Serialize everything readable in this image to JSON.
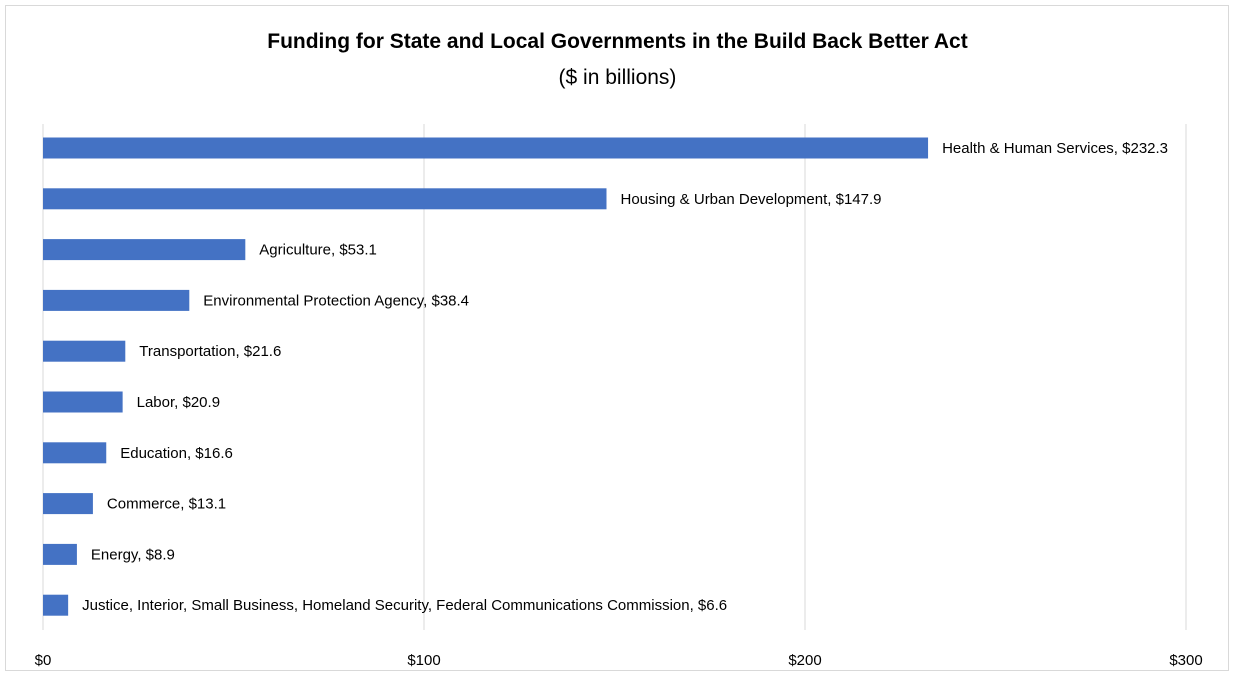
{
  "chart_data": {
    "type": "bar",
    "orientation": "horizontal",
    "title": "Funding for State and Local Governments in the Build Back Better Act",
    "subtitle": "($ in billions)",
    "categories": [
      "Health & Human Services",
      "Housing & Urban Development",
      "Agriculture",
      "Environmental Protection Agency",
      "Transportation",
      "Labor",
      "Education",
      "Commerce",
      "Energy",
      "Justice, Interior, Small Business, Homeland Security, Federal Communications Commission"
    ],
    "values": [
      232.3,
      147.9,
      53.1,
      38.4,
      21.6,
      20.9,
      16.6,
      13.1,
      8.9,
      6.6
    ],
    "data_labels": [
      "$232.3",
      "$147.9",
      "$53.1",
      "$38.4",
      "$21.6",
      "$20.9",
      "$16.6",
      "$13.1",
      "$8.9",
      "$6.6"
    ],
    "xlim": [
      0,
      300
    ],
    "xticks": [
      0,
      100,
      200,
      300
    ],
    "xtick_labels": [
      "$0",
      "$100",
      "$200",
      "$300"
    ],
    "xlabel": "",
    "ylabel": "",
    "grid": "vertical",
    "legend": "none",
    "bar_color": "#4472c4",
    "grid_color": "#d9d9d9"
  }
}
